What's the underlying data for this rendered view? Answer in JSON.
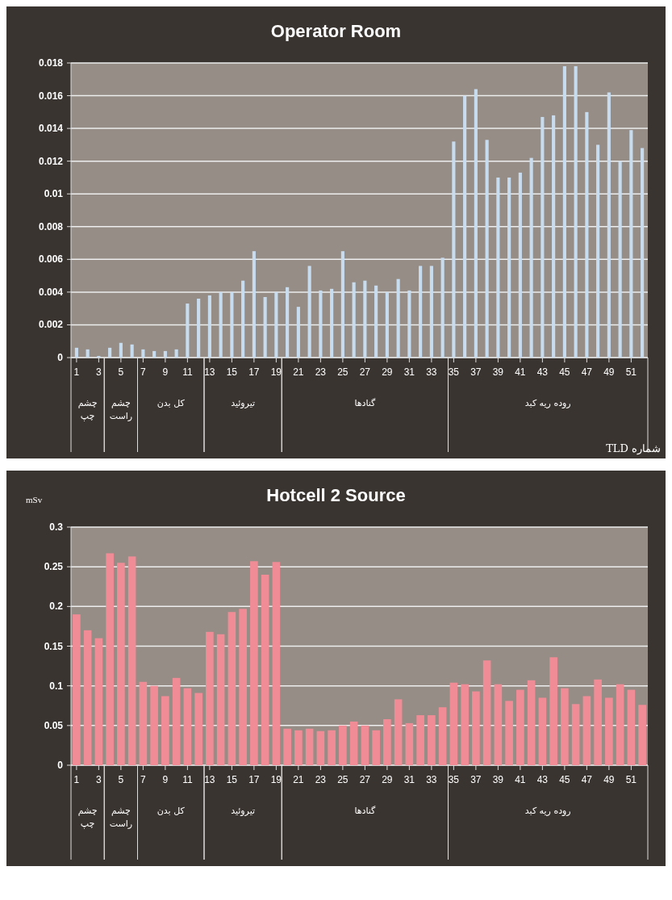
{
  "chart_data": [
    {
      "type": "bar",
      "title": "Operator Room",
      "xlabel": "شماره TLD",
      "x": [
        1,
        2,
        3,
        4,
        5,
        6,
        7,
        8,
        9,
        10,
        11,
        12,
        13,
        14,
        15,
        16,
        17,
        18,
        19,
        20,
        21,
        22,
        23,
        24,
        25,
        26,
        27,
        28,
        29,
        30,
        31,
        32,
        33,
        34,
        35,
        36,
        37,
        38,
        39,
        40,
        41,
        42,
        43,
        44,
        45,
        46,
        47,
        48,
        49,
        50,
        51,
        52
      ],
      "values": [
        0.0006,
        0.0005,
        0.0001,
        0.0006,
        0.0009,
        0.0008,
        0.0005,
        0.0004,
        0.0004,
        0.0005,
        0.0033,
        0.0036,
        0.0038,
        0.004,
        0.004,
        0.0047,
        0.0065,
        0.0037,
        0.004,
        0.0043,
        0.0031,
        0.0056,
        0.0041,
        0.0042,
        0.0065,
        0.0046,
        0.0047,
        0.0044,
        0.004,
        0.0048,
        0.0041,
        0.0056,
        0.0056,
        0.0061,
        0.0132,
        0.016,
        0.0164,
        0.0133,
        0.011,
        0.011,
        0.0113,
        0.0122,
        0.0147,
        0.0148,
        0.0178,
        0.0178,
        0.015,
        0.013,
        0.0162,
        0.012,
        0.0139,
        0.0128
      ],
      "color": "#c8dcf0",
      "xlim": [
        0.5,
        52.5
      ],
      "xticks": [
        1,
        3,
        5,
        7,
        9,
        11,
        13,
        15,
        17,
        19,
        21,
        23,
        25,
        27,
        29,
        31,
        33,
        35,
        37,
        39,
        41,
        43,
        45,
        47,
        49,
        51
      ],
      "ylim": [
        0,
        0.018
      ],
      "yticks": [
        0,
        0.002,
        0.004,
        0.006,
        0.008,
        0.01,
        0.012,
        0.014,
        0.016,
        0.018
      ],
      "grid": "y",
      "annotations": [
        "چشم چپ",
        "چشم راست",
        "کل بدن",
        "تیروئید",
        "گنادها",
        "روده ریه کبد"
      ]
    },
    {
      "type": "bar",
      "title": "Hotcell 2 Source",
      "ylabel": "mSv",
      "x": [
        1,
        2,
        3,
        4,
        5,
        6,
        7,
        8,
        9,
        10,
        11,
        12,
        13,
        14,
        15,
        16,
        17,
        18,
        19,
        20,
        21,
        22,
        23,
        24,
        25,
        26,
        27,
        28,
        29,
        30,
        31,
        32,
        33,
        34,
        35,
        36,
        37,
        38,
        39,
        40,
        41,
        42,
        43,
        44,
        45,
        46,
        47,
        48,
        49,
        50,
        51,
        52
      ],
      "values": [
        0.19,
        0.17,
        0.16,
        0.267,
        0.255,
        0.263,
        0.105,
        0.1,
        0.087,
        0.11,
        0.097,
        0.091,
        0.168,
        0.165,
        0.193,
        0.197,
        0.257,
        0.24,
        0.256,
        0.046,
        0.044,
        0.046,
        0.043,
        0.044,
        0.05,
        0.055,
        0.05,
        0.044,
        0.058,
        0.083,
        0.053,
        0.063,
        0.063,
        0.073,
        0.104,
        0.102,
        0.093,
        0.132,
        0.102,
        0.081,
        0.095,
        0.107,
        0.085,
        0.136,
        0.097,
        0.077,
        0.087,
        0.108,
        0.085,
        0.102,
        0.095,
        0.076
      ],
      "color": "#f08c96",
      "xlim": [
        0.5,
        52.5
      ],
      "xticks": [
        1,
        3,
        5,
        7,
        9,
        11,
        13,
        15,
        17,
        19,
        21,
        23,
        25,
        27,
        29,
        31,
        33,
        35,
        37,
        39,
        41,
        43,
        45,
        47,
        49,
        51
      ],
      "ylim": [
        0,
        0.3
      ],
      "yticks": [
        0,
        0.05,
        0.1,
        0.15,
        0.2,
        0.25,
        0.3
      ],
      "grid": "y",
      "annotations": [
        "چشم چپ",
        "چشم راست",
        "کل بدن",
        "تیروئید",
        "گنادها",
        "روده ریه کبد"
      ]
    }
  ]
}
